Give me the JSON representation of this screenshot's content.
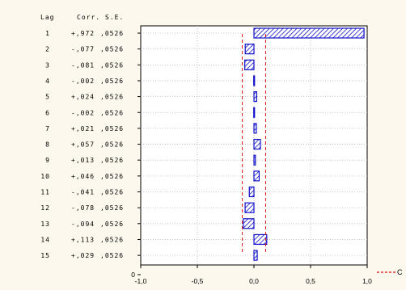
{
  "chart_data": {
    "type": "bar",
    "orientation": "horizontal",
    "table_headers": [
      "Lag",
      "Corr.",
      "S.E."
    ],
    "lags": [
      "1",
      "2",
      "3",
      "4",
      "5",
      "6",
      "7",
      "8",
      "9",
      "10",
      "11",
      "12",
      "13",
      "14",
      "15"
    ],
    "corr_labels": [
      "+,972",
      "-,077",
      "-,081",
      "-,002",
      "+,024",
      "-,002",
      "+,021",
      "+,057",
      "+,013",
      "+,046",
      "-,041",
      "-,078",
      "-,094",
      "+,113",
      "+,029"
    ],
    "se_labels": [
      ",0526",
      ",0526",
      ",0526",
      ",0526",
      ",0526",
      ",0526",
      ",0526",
      ",0526",
      ",0526",
      ",0526",
      ",0526",
      ",0526",
      ",0526",
      ",0526",
      ",0526"
    ],
    "values": [
      0.972,
      -0.077,
      -0.081,
      -0.002,
      0.024,
      -0.002,
      0.021,
      0.057,
      0.013,
      0.046,
      -0.041,
      -0.078,
      -0.094,
      0.113,
      0.029
    ],
    "confidence_limit": 0.103,
    "xlim": [
      -1.0,
      1.0
    ],
    "xticks": [
      "-1,0",
      "-0,5",
      "0,0",
      "0,5",
      "1,0"
    ],
    "y_extra_tick": "0",
    "legend_label": "C",
    "grid": true,
    "colors": {
      "bar_stroke": "#1010c8",
      "bar_hatch": "#1010c8",
      "conf_line": "#e01010",
      "background": "#fdf8ee",
      "plot_background": "#ffffff"
    }
  }
}
